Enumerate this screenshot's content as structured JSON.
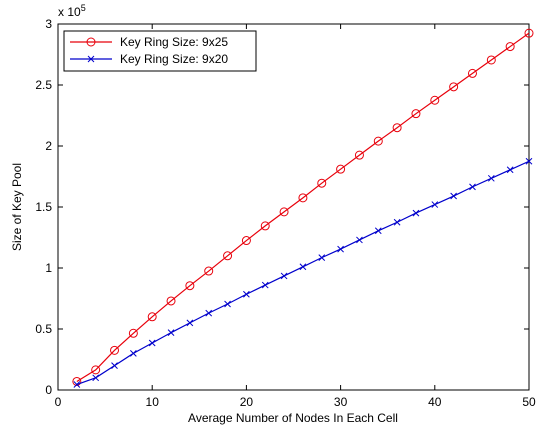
{
  "chart_data": {
    "type": "line",
    "title": "",
    "xlabel": "Average Number of Nodes In Each Cell",
    "ylabel": "Size of Key Pool",
    "y_exponent_label": "x 10",
    "y_exponent_power": "5",
    "xlim": [
      0,
      50
    ],
    "ylim": [
      0,
      3
    ],
    "x_ticks": [
      0,
      10,
      20,
      30,
      40,
      50
    ],
    "x_tick_labels": [
      "0",
      "10",
      "20",
      "30",
      "40",
      "50"
    ],
    "y_ticks": [
      0,
      0.5,
      1,
      1.5,
      2,
      2.5,
      3
    ],
    "y_tick_labels": [
      "0",
      "0.5",
      "1",
      "1.5",
      "2",
      "2.5",
      "3"
    ],
    "grid": false,
    "legend_position": "top-left",
    "x": [
      2,
      4,
      6,
      8,
      10,
      12,
      14,
      16,
      18,
      20,
      22,
      24,
      26,
      28,
      30,
      32,
      34,
      36,
      38,
      40,
      42,
      44,
      46,
      48,
      50
    ],
    "series": [
      {
        "name": "Key Ring Size: 9x25",
        "color": "#e8000b",
        "marker": "circle",
        "values": [
          0.07,
          0.165,
          0.325,
          0.465,
          0.6,
          0.73,
          0.855,
          0.975,
          1.1,
          1.225,
          1.345,
          1.46,
          1.575,
          1.695,
          1.81,
          1.925,
          2.04,
          2.15,
          2.265,
          2.375,
          2.485,
          2.595,
          2.705,
          2.815,
          2.925
        ]
      },
      {
        "name": "Key Ring Size: 9x20",
        "color": "#0000cc",
        "marker": "x",
        "values": [
          0.045,
          0.1,
          0.2,
          0.3,
          0.385,
          0.47,
          0.55,
          0.63,
          0.705,
          0.785,
          0.86,
          0.935,
          1.01,
          1.085,
          1.155,
          1.23,
          1.305,
          1.375,
          1.45,
          1.52,
          1.59,
          1.665,
          1.735,
          1.805,
          1.875
        ]
      }
    ]
  }
}
